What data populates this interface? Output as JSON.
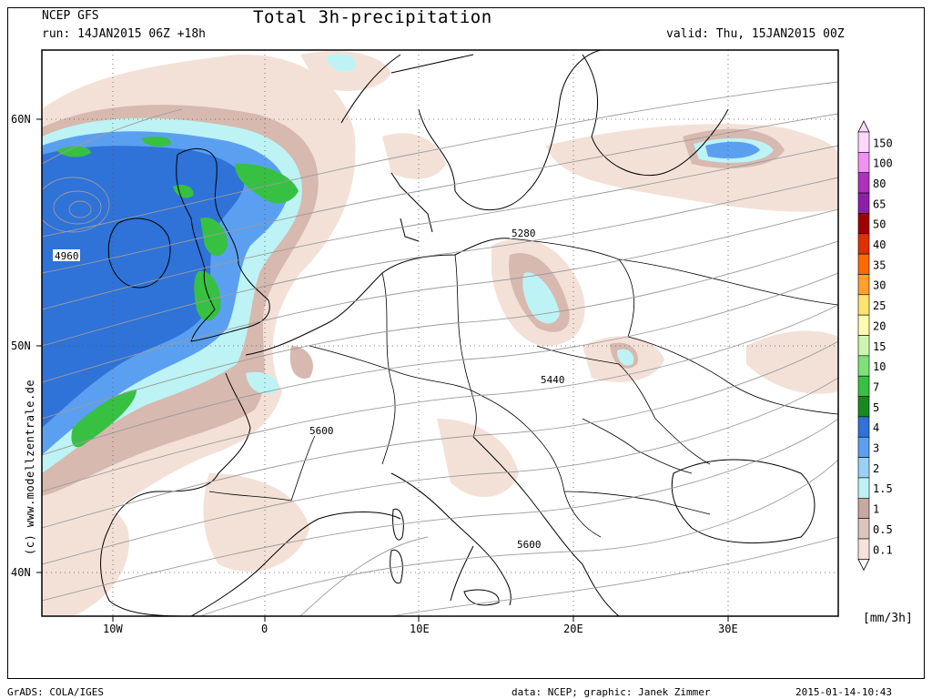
{
  "header": {
    "model": "NCEP GFS",
    "run": "run: 14JAN2015 06Z +18h",
    "title": "Total 3h-precipitation",
    "valid": "valid: Thu, 15JAN2015 00Z"
  },
  "map": {
    "lat_labels": [
      "60N",
      "50N",
      "40N"
    ],
    "lon_labels": [
      "10W",
      "0",
      "10E",
      "20E",
      "30E"
    ],
    "contour_labels": [
      "4960",
      "5280",
      "5440",
      "5600",
      "5600"
    ],
    "watermark": "(c) www.modellzentrale.de"
  },
  "legend": {
    "unit": "[mm/3h]",
    "levels": [
      "150",
      "100",
      "80",
      "65",
      "50",
      "40",
      "35",
      "30",
      "25",
      "20",
      "15",
      "10",
      "7",
      "5",
      "4",
      "3",
      "2",
      "1.5",
      "1",
      "0.5",
      "0.1"
    ],
    "colors": [
      "#ffd7ff",
      "#f090f0",
      "#b030c0",
      "#8e1fa8",
      "#a00000",
      "#e03000",
      "#ff6a00",
      "#ffa030",
      "#ffe46c",
      "#fffcb0",
      "#cdf5b0",
      "#7fe07a",
      "#38c043",
      "#178a1e",
      "#2f72d8",
      "#5ba0f0",
      "#9ad0f7",
      "#bdf3f5",
      "#c5a8a0",
      "#ddc5bd",
      "#f5e3db"
    ]
  },
  "footer": {
    "left": "GrADS: COLA/IGES",
    "data": "data: NCEP; graphic: Janek Zimmer",
    "timestamp": "2015-01-14-10:43"
  }
}
